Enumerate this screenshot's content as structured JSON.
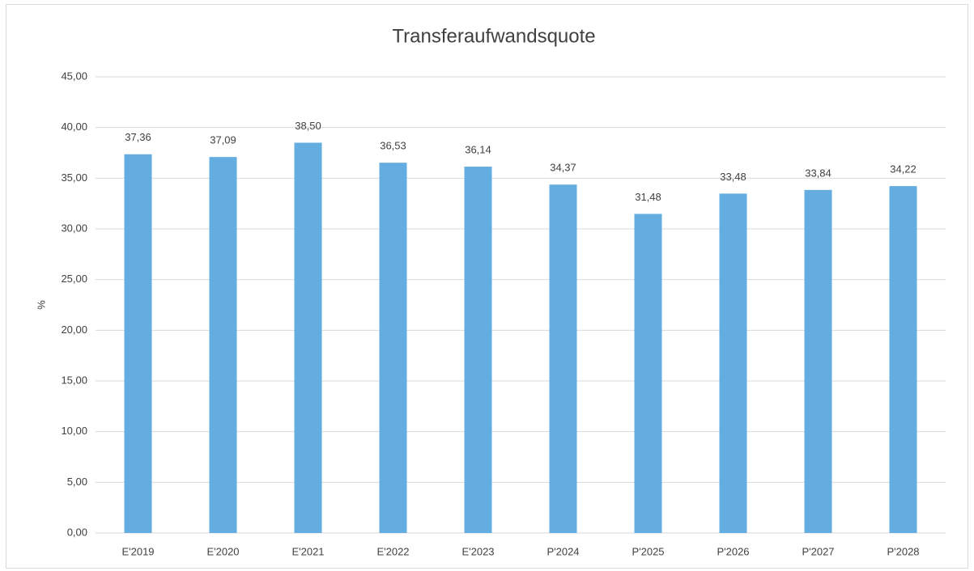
{
  "chart_data": {
    "type": "bar",
    "title": "Transferaufwandsquote",
    "y_label": "%",
    "categories": [
      "E'2019",
      "E'2020",
      "E'2021",
      "E'2022",
      "E'2023",
      "P'2024",
      "P'2025",
      "P'2026",
      "P'2027",
      "P'2028"
    ],
    "values": [
      37.36,
      37.09,
      38.5,
      36.53,
      36.14,
      34.37,
      31.48,
      33.48,
      33.84,
      34.22
    ],
    "value_labels": [
      "37,36",
      "37,09",
      "38,50",
      "36,53",
      "36,14",
      "34,37",
      "31,48",
      "33,48",
      "33,84",
      "34,22"
    ],
    "color": "#64ade0",
    "ylim": [
      0,
      45
    ],
    "yticks": [
      {
        "value": 0,
        "label": "0,00"
      },
      {
        "value": 5,
        "label": "5,00"
      },
      {
        "value": 10,
        "label": "10,00"
      },
      {
        "value": 15,
        "label": "15,00"
      },
      {
        "value": 20,
        "label": "20,00"
      },
      {
        "value": 25,
        "label": "25,00"
      },
      {
        "value": 30,
        "label": "30,00"
      },
      {
        "value": 35,
        "label": "35,00"
      },
      {
        "value": 40,
        "label": "40,00"
      },
      {
        "value": 45,
        "label": "45,00"
      }
    ],
    "grid": true
  }
}
